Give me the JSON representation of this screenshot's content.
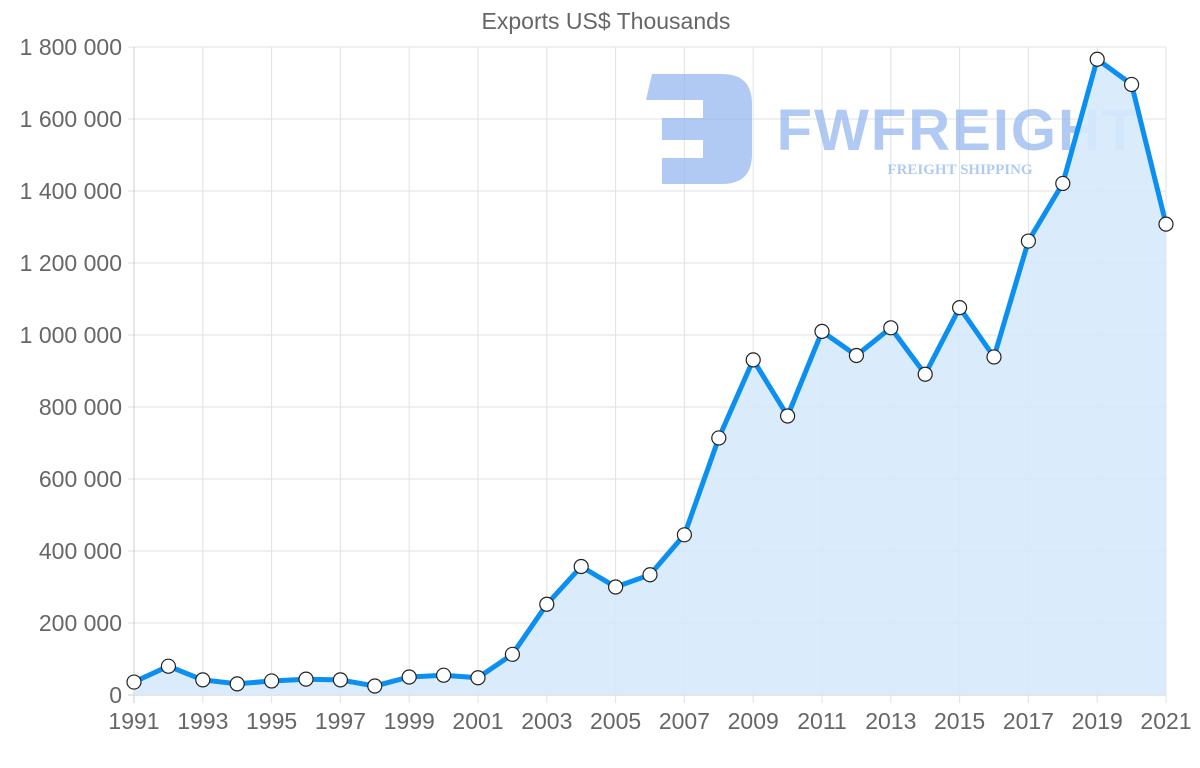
{
  "chart_data": {
    "type": "line",
    "title": "Exports US$ Thousands",
    "xlabel": "",
    "ylabel": "",
    "x": [
      1991,
      1992,
      1993,
      1994,
      1995,
      1996,
      1997,
      1998,
      1999,
      2000,
      2001,
      2002,
      2003,
      2004,
      2005,
      2006,
      2007,
      2008,
      2009,
      2010,
      2011,
      2012,
      2013,
      2014,
      2015,
      2016,
      2017,
      2018,
      2019,
      2020,
      2021
    ],
    "series": [
      {
        "name": "Exports US$ Thousands",
        "values": [
          36000,
          80000,
          42000,
          31000,
          39000,
          44000,
          42000,
          25000,
          50000,
          55000,
          48000,
          113000,
          252000,
          357000,
          300000,
          334000,
          445000,
          714000,
          931000,
          775000,
          1010000,
          943000,
          1020000,
          891000,
          1076000,
          939000,
          1261000,
          1421000,
          1766000,
          1696000,
          1308000
        ],
        "line_color": "#0b8ff0",
        "fill_color": "#d6eafc",
        "point_fill": "#ffffff",
        "point_stroke": "#222222"
      }
    ],
    "ylim": [
      0,
      1800000
    ],
    "yticks": [
      0,
      200000,
      400000,
      600000,
      800000,
      1000000,
      1200000,
      1400000,
      1600000,
      1800000
    ],
    "ytick_labels": [
      "0",
      "200 000",
      "400 000",
      "600 000",
      "800 000",
      "1 000 000",
      "1 200 000",
      "1 400 000",
      "1 600 000",
      "1 800 000"
    ],
    "xtick_labels": [
      "1991",
      "1993",
      "1995",
      "1997",
      "1999",
      "2001",
      "2003",
      "2005",
      "2007",
      "2009",
      "2011",
      "2013",
      "2015",
      "2017",
      "2019",
      "2021"
    ],
    "grid": true,
    "legend": "none",
    "area_fill": true
  },
  "watermark": {
    "brand": "FWFREIGHT",
    "tagline": "FREIGHT SHIPPING",
    "color": "#8fb4ee"
  },
  "colors": {
    "grid": "#e2e2e2",
    "axis": "#cccccc",
    "tick_text": "#666666"
  }
}
